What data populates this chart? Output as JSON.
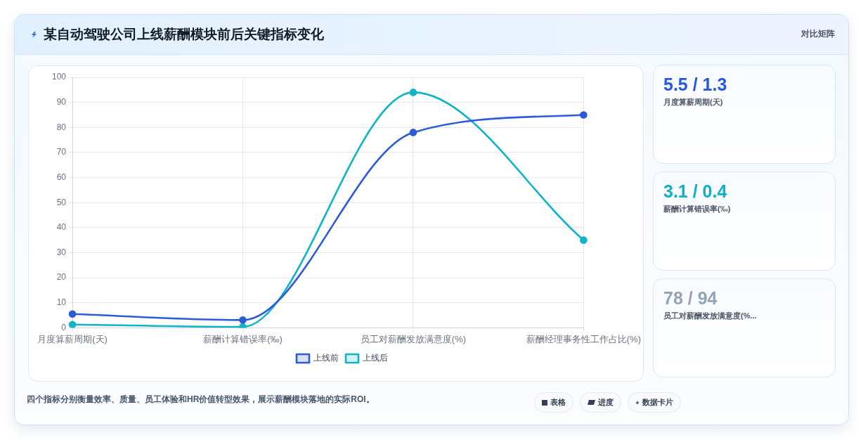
{
  "chart_data": [
    {
      "type": "line",
      "title": "某自动驾驶公司上线薪酬模块前后关键指标变化",
      "categories": [
        "月度算薪周期(天)",
        "薪酬计算错误率(‰)",
        "员工对薪酬发放满意度(%)",
        "薪酬经理事务性工作占比(%)"
      ],
      "series": [
        {
          "name": "上线前",
          "color": "#2b5bd8",
          "values": [
            5.5,
            3.1,
            78,
            85
          ]
        },
        {
          "name": "上线后",
          "color": "#10b4c9",
          "values": [
            1.3,
            0.4,
            94,
            35
          ]
        }
      ],
      "ylim": [
        0,
        100
      ],
      "yticks": [
        0,
        10,
        20,
        30,
        40,
        50,
        60,
        70,
        80,
        90,
        100
      ],
      "grid": true,
      "legend": "bottom",
      "marker": "circle",
      "line_style": "solid",
      "annotations": [
        "对比矩阵",
        "四个指标分别衡量效率、质量、员工体验和HR价值转型效果，展示薪酬模块落地的实际ROI。",
        "表格",
        "进度",
        "数据卡片"
      ]
    },
    {
      "type": "other",
      "annotations": [
        "5.5 / 1.3",
        "月度算薪周期(天)",
        "3.1 / 0.4",
        "薪酬计算错误率(‰)",
        "78 / 94",
        "员工对薪酬发放满意度(%..."
      ]
    }
  ]
}
